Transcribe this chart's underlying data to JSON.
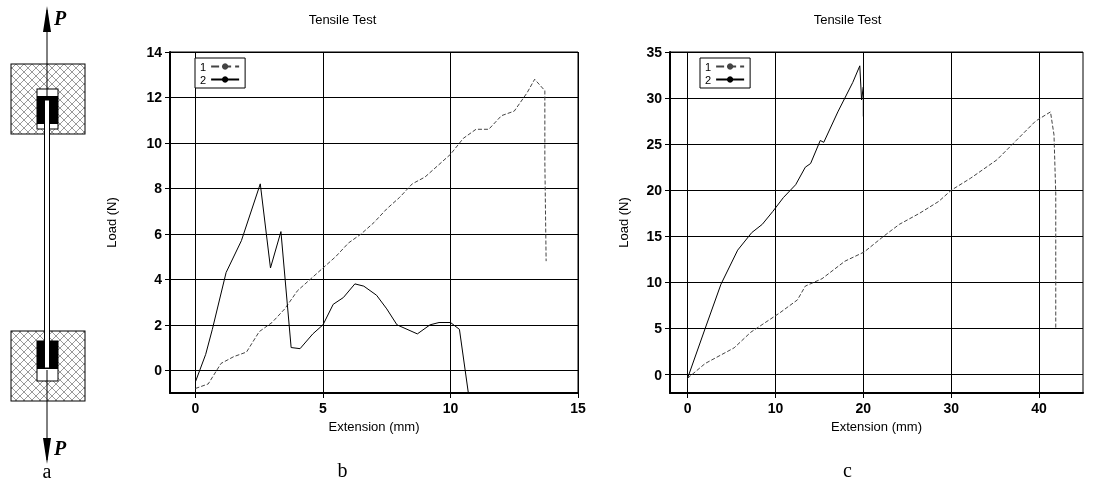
{
  "chart_data": [
    {
      "type": "other",
      "annotations": [
        "P",
        "P",
        "a"
      ]
    },
    {
      "type": "line",
      "title": "Tensile Test",
      "xlabel": "Extension (mm)",
      "ylabel": "Load (N)",
      "annotations": [
        "b"
      ],
      "xlim": [
        -1,
        15
      ],
      "xticks": [
        0,
        5,
        10,
        15
      ],
      "ylim": [
        -1,
        14
      ],
      "yticks": [
        0,
        2,
        4,
        6,
        8,
        10,
        12,
        14
      ],
      "grid": true,
      "legend": "top left",
      "marker": "none",
      "series": [
        {
          "name": "1",
          "color": "#444444",
          "line_style": "dashed",
          "x": [
            0,
            0.5,
            1,
            1.5,
            2,
            2.5,
            3,
            3.5,
            4,
            4.5,
            5,
            5.5,
            6,
            6.5,
            7,
            7.5,
            8,
            8.5,
            9,
            9.5,
            10,
            10.5,
            11,
            11.5,
            12,
            12.5,
            13,
            13.3,
            13.7,
            13.7,
            13.75
          ],
          "values": [
            -0.8,
            -0.6,
            0.3,
            0.6,
            0.8,
            1.7,
            2.1,
            2.7,
            3.5,
            4,
            4.5,
            5,
            5.6,
            6,
            6.5,
            7.1,
            7.6,
            8.2,
            8.5,
            9,
            9.5,
            10.2,
            10.6,
            10.6,
            11.2,
            11.4,
            12.2,
            12.8,
            12.3,
            9.2,
            4.8
          ]
        },
        {
          "name": "2",
          "color": "#000000",
          "line_style": "solid",
          "x": [
            0,
            0.4,
            0.66,
            1.2,
            1.8,
            2.54,
            2.94,
            3.35,
            3.75,
            4.1,
            4.6,
            5,
            5.4,
            5.8,
            6.25,
            6.6,
            7.1,
            7.5,
            7.9,
            8.7,
            9.2,
            9.55,
            10,
            10.35,
            10.7
          ],
          "values": [
            -0.5,
            0.7,
            1.8,
            4.3,
            5.7,
            8.2,
            4.5,
            6.1,
            1,
            0.95,
            1.6,
            2,
            2.9,
            3.2,
            3.8,
            3.7,
            3.3,
            2.7,
            2,
            1.6,
            2,
            2.1,
            2.1,
            1.8,
            -1
          ]
        }
      ]
    },
    {
      "type": "line",
      "title": "Tensile Test",
      "xlabel": "Extension (mm)",
      "ylabel": "Load (N)",
      "annotations": [
        "c"
      ],
      "xlim": [
        -2,
        45
      ],
      "xticks": [
        0,
        10,
        20,
        30,
        40
      ],
      "ylim": [
        -2,
        35
      ],
      "yticks": [
        0,
        5,
        10,
        15,
        20,
        25,
        30,
        35
      ],
      "grid": true,
      "legend": "top left",
      "marker": "none",
      "series": [
        {
          "name": "1",
          "color": "#444444",
          "line_style": "dashed",
          "x": [
            0,
            2,
            5.3,
            7.2,
            10.5,
            12.5,
            13.4,
            15.3,
            17.9,
            20.1,
            22.3,
            24.1,
            26.4,
            28.6,
            30,
            32.2,
            35.2,
            37.4,
            39.6,
            41.3,
            41.7,
            41.9,
            41.9
          ],
          "values": [
            -0.4,
            1.2,
            2.9,
            4.6,
            6.7,
            8.1,
            9.6,
            10.4,
            12.3,
            13.3,
            15,
            16.3,
            17.5,
            18.8,
            20,
            21.3,
            23.3,
            25.4,
            27.5,
            28.5,
            26,
            19.6,
            5
          ]
        },
        {
          "name": "2",
          "color": "#000000",
          "line_style": "solid",
          "x": [
            0,
            2,
            3.8,
            5.7,
            7.3,
            8.5,
            9.7,
            10.9,
            12.3,
            13.4,
            14,
            15.1,
            15.5,
            17.1,
            18.8,
            19.6,
            19.8,
            20,
            20
          ],
          "values": [
            -0.4,
            5,
            9.8,
            13.5,
            15.4,
            16.3,
            17.7,
            19.2,
            20.6,
            22.5,
            22.9,
            25.4,
            25.2,
            28.5,
            31.7,
            33.5,
            29.8,
            31.2,
            28
          ]
        }
      ]
    }
  ]
}
